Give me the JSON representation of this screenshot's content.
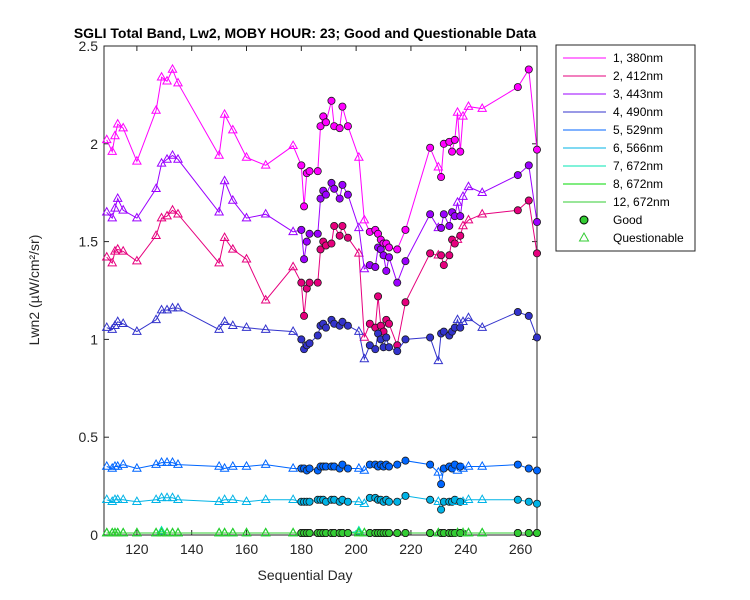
{
  "chart_data": {
    "type": "line",
    "title": "SGLI Total Band, Lw2, MOBY HOUR: 23;  Good and Questionable Data",
    "xlabel": "Sequential Day",
    "ylabel": "Lwn2 (µW/cm²/sr)",
    "xlim": [
      108,
      266
    ],
    "ylim": [
      0,
      2.5
    ],
    "xticks": [
      120,
      140,
      160,
      180,
      200,
      220,
      240,
      260
    ],
    "yticks": [
      0,
      0.5,
      1,
      1.5,
      2,
      2.5
    ],
    "ytick_labels": [
      "0",
      "0.5",
      "1",
      "1.5",
      "2",
      "2.5"
    ],
    "grid": false,
    "legend_position": "outside-right",
    "days": [
      109,
      111,
      112,
      113,
      115,
      120,
      127,
      129,
      131,
      133,
      135,
      150,
      152,
      155,
      160,
      167,
      177,
      180,
      181,
      182,
      183,
      186,
      187,
      188,
      189,
      191,
      192,
      194,
      195,
      197,
      201,
      203,
      205,
      207,
      208,
      209,
      210,
      211,
      212,
      215,
      218,
      227,
      230,
      231,
      232,
      234,
      235,
      236,
      237,
      238,
      239,
      241,
      246,
      259,
      263,
      266
    ],
    "quality": [
      "Q",
      "Q",
      "Q",
      "Q",
      "Q",
      "Q",
      "Q",
      "Q",
      "Q",
      "Q",
      "Q",
      "Q",
      "Q",
      "Q",
      "Q",
      "Q",
      "Q",
      "G",
      "G",
      "G",
      "G",
      "G",
      "G",
      "G",
      "G",
      "G",
      "G",
      "G",
      "G",
      "G",
      "Q",
      "Q",
      "G",
      "G",
      "G",
      "G",
      "G",
      "G",
      "G",
      "G",
      "G",
      "G",
      "Q",
      "G",
      "G",
      "G",
      "G",
      "G",
      "Q",
      "G",
      "Q",
      "Q",
      "Q",
      "G",
      "G",
      "G"
    ],
    "series": [
      {
        "name": "1, 380nm",
        "color": "#ff00ff",
        "values": [
          2.02,
          1.96,
          2.04,
          2.1,
          2.08,
          1.91,
          2.17,
          2.34,
          2.32,
          2.38,
          2.31,
          1.94,
          2.15,
          2.07,
          1.93,
          1.89,
          1.99,
          1.89,
          1.68,
          1.85,
          1.86,
          1.86,
          2.09,
          2.14,
          2.11,
          2.22,
          2.09,
          2.08,
          2.19,
          2.09,
          1.93,
          1.61,
          1.55,
          1.56,
          1.54,
          1.51,
          1.49,
          1.49,
          1.47,
          1.46,
          1.56,
          1.98,
          1.88,
          1.83,
          2.0,
          2.01,
          1.96,
          2.02,
          2.16,
          1.96,
          2.14,
          2.19,
          2.18,
          2.29,
          2.38,
          1.97
        ]
      },
      {
        "name": "2, 412nm",
        "color": "#e6007e",
        "values": [
          1.42,
          1.39,
          1.45,
          1.46,
          1.45,
          1.4,
          1.53,
          1.62,
          1.63,
          1.66,
          1.64,
          1.39,
          1.52,
          1.46,
          1.41,
          1.2,
          1.37,
          1.29,
          1.12,
          1.26,
          1.29,
          1.29,
          1.46,
          1.5,
          1.48,
          1.49,
          1.58,
          1.53,
          1.58,
          1.52,
          1.44,
          1.01,
          1.08,
          1.06,
          1.22,
          1.07,
          1.04,
          1.1,
          1.08,
          0.97,
          1.19,
          1.44,
          1.43,
          1.43,
          1.38,
          1.43,
          1.51,
          1.49,
          1.51,
          1.53,
          1.58,
          1.61,
          1.64,
          1.66,
          1.71,
          1.44
        ]
      },
      {
        "name": "3, 443nm",
        "color": "#9b00ff",
        "values": [
          1.65,
          1.62,
          1.67,
          1.72,
          1.66,
          1.62,
          1.77,
          1.9,
          1.92,
          1.94,
          1.92,
          1.65,
          1.81,
          1.71,
          1.62,
          1.64,
          1.55,
          1.56,
          1.41,
          1.5,
          1.54,
          1.54,
          1.72,
          1.76,
          1.74,
          1.8,
          1.77,
          1.72,
          1.79,
          1.74,
          1.57,
          1.36,
          1.38,
          1.37,
          1.47,
          1.46,
          1.43,
          1.35,
          1.42,
          1.29,
          1.4,
          1.64,
          1.57,
          1.57,
          1.64,
          1.58,
          1.65,
          1.63,
          1.7,
          1.63,
          1.73,
          1.78,
          1.75,
          1.84,
          1.89,
          1.6
        ]
      },
      {
        "name": "4, 490nm",
        "color": "#3333cc",
        "values": [
          1.06,
          1.05,
          1.07,
          1.09,
          1.08,
          1.04,
          1.1,
          1.15,
          1.15,
          1.16,
          1.16,
          1.05,
          1.09,
          1.07,
          1.06,
          1.05,
          1.04,
          1.0,
          0.95,
          0.97,
          0.98,
          1.02,
          1.07,
          1.08,
          1.06,
          1.1,
          1.08,
          1.07,
          1.09,
          1.07,
          1.04,
          0.9,
          0.97,
          0.95,
          1.03,
          1.0,
          0.96,
          1.01,
          0.96,
          0.94,
          1.0,
          1.01,
          0.89,
          1.03,
          1.04,
          1.02,
          1.04,
          1.06,
          1.1,
          1.06,
          1.09,
          1.11,
          1.06,
          1.14,
          1.12,
          1.01
        ]
      },
      {
        "name": "5, 529nm",
        "color": "#0066ff",
        "values": [
          0.35,
          0.34,
          0.35,
          0.35,
          0.36,
          0.34,
          0.36,
          0.37,
          0.37,
          0.37,
          0.36,
          0.35,
          0.34,
          0.35,
          0.35,
          0.36,
          0.34,
          0.34,
          0.34,
          0.33,
          0.34,
          0.33,
          0.35,
          0.35,
          0.35,
          0.35,
          0.35,
          0.34,
          0.36,
          0.34,
          0.34,
          0.33,
          0.36,
          0.36,
          0.35,
          0.36,
          0.35,
          0.36,
          0.35,
          0.36,
          0.38,
          0.36,
          0.32,
          0.26,
          0.34,
          0.35,
          0.34,
          0.36,
          0.33,
          0.35,
          0.34,
          0.35,
          0.35,
          0.36,
          0.34,
          0.33
        ]
      },
      {
        "name": "6, 566nm",
        "color": "#00b3e6",
        "values": [
          0.18,
          0.17,
          0.18,
          0.18,
          0.18,
          0.17,
          0.18,
          0.19,
          0.19,
          0.19,
          0.18,
          0.17,
          0.18,
          0.18,
          0.17,
          0.18,
          0.18,
          0.17,
          0.17,
          0.17,
          0.17,
          0.18,
          0.18,
          0.18,
          0.17,
          0.18,
          0.18,
          0.17,
          0.18,
          0.17,
          0.17,
          0.16,
          0.19,
          0.19,
          0.18,
          0.18,
          0.17,
          0.18,
          0.17,
          0.17,
          0.2,
          0.18,
          0.17,
          0.13,
          0.17,
          0.17,
          0.17,
          0.18,
          0.17,
          0.17,
          0.17,
          0.18,
          0.18,
          0.18,
          0.17,
          0.16
        ]
      },
      {
        "name": "7, 672nm",
        "color": "#00e6b3",
        "values": [
          0.01,
          0.01,
          0.01,
          0.01,
          0.01,
          0.01,
          0.01,
          0.02,
          0.01,
          0.01,
          0.01,
          0.01,
          0.01,
          0.01,
          0.01,
          0.01,
          0.01,
          0.01,
          0.01,
          0.01,
          0.01,
          0.01,
          0.01,
          0.01,
          0.01,
          0.01,
          0.01,
          0.01,
          0.01,
          0.01,
          0.02,
          0.01,
          0.01,
          0.01,
          0.01,
          0.01,
          0.01,
          0.01,
          0.01,
          0.01,
          0.01,
          0.01,
          0.01,
          0.01,
          0.01,
          0.01,
          0.01,
          0.01,
          0.01,
          0.01,
          0.01,
          0.01,
          0.01,
          0.01,
          0.01,
          0.01
        ]
      },
      {
        "name": "8, 672nm",
        "color": "#00d900",
        "values": [
          0.01,
          0.01,
          0.01,
          0.01,
          0.01,
          0.01,
          0.01,
          0.01,
          0.01,
          0.01,
          0.01,
          0.01,
          0.01,
          0.01,
          0.01,
          0.01,
          0.01,
          0.01,
          0.01,
          0.01,
          0.01,
          0.01,
          0.01,
          0.01,
          0.01,
          0.01,
          0.01,
          0.01,
          0.01,
          0.01,
          0.01,
          0.01,
          0.01,
          0.01,
          0.01,
          0.01,
          0.01,
          0.01,
          0.01,
          0.01,
          0.01,
          0.01,
          0.01,
          0.01,
          0.01,
          0.01,
          0.01,
          0.01,
          0.01,
          0.01,
          0.01,
          0.01,
          0.01,
          0.01,
          0.01,
          0.01
        ]
      },
      {
        "name": "12, 672nm",
        "color": "#33cc33",
        "values": [
          0.01,
          0.01,
          0.01,
          0.01,
          0.01,
          0.01,
          0.01,
          0.01,
          0.01,
          0.01,
          0.01,
          0.01,
          0.01,
          0.01,
          0.01,
          0.01,
          0.01,
          0.01,
          0.01,
          0.01,
          0.01,
          0.01,
          0.01,
          0.01,
          0.01,
          0.01,
          0.01,
          0.01,
          0.01,
          0.01,
          0.01,
          0.01,
          0.01,
          0.01,
          0.01,
          0.01,
          0.01,
          0.01,
          0.01,
          0.01,
          0.01,
          0.01,
          0.01,
          0.01,
          0.01,
          0.01,
          0.01,
          0.01,
          0.01,
          0.01,
          0.01,
          0.01,
          0.01,
          0.01,
          0.01,
          0.01
        ]
      }
    ],
    "legend_markers": [
      {
        "name": "Good",
        "marker": "circle",
        "fill": "#33cc33",
        "stroke": "#000000"
      },
      {
        "name": "Questionable",
        "marker": "triangle",
        "fill": "none",
        "stroke": "#33cc33"
      }
    ]
  }
}
